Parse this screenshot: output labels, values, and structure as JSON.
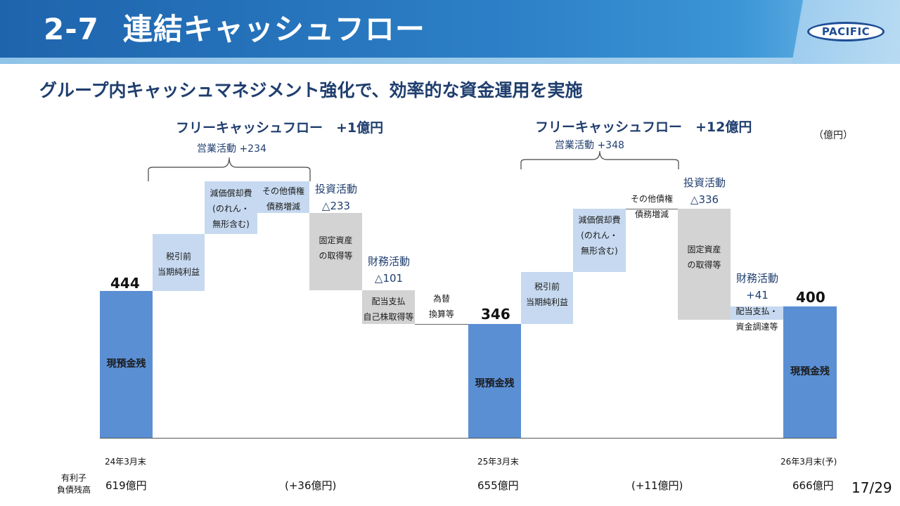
{
  "header": {
    "section_number": "2-7",
    "title": "連結キャッシュフロー",
    "logo_text": "PACIFIC"
  },
  "subtitle": "グループ内キャッシュマネジメント強化で、効率的な資金運用を実施",
  "unit": "（億円）",
  "fcf": [
    {
      "title": "フリーキャッシュフロー　+1億円",
      "operating": "営業活動  +234"
    },
    {
      "title": "フリーキャッシュフロー　+12億円",
      "operating": "営業活動  +348"
    }
  ],
  "chart_data": {
    "type": "waterfall",
    "unit": "（億円）",
    "period1": {
      "start": {
        "label": "24年3月末",
        "value": 444,
        "bar_text": "現預金残"
      },
      "steps": [
        {
          "text": [
            "税引前",
            "当期純利益"
          ]
        },
        {
          "text": [
            "減価償却費",
            "(のれん・",
            "無形含む)"
          ]
        },
        {
          "text": [
            "その他債権",
            "債務増減"
          ]
        },
        {
          "text": [
            "固定資産",
            "の取得等"
          ],
          "category": [
            "投資活動",
            "△233"
          ]
        },
        {
          "text": [
            "配当支払",
            "自己株取得等"
          ],
          "category": [
            "財務活動",
            "△101"
          ]
        },
        {
          "text": [
            "為替",
            "換算等"
          ]
        }
      ],
      "end": {
        "label": "25年3月末",
        "value": 346,
        "bar_text": "現預金残"
      }
    },
    "period2": {
      "steps": [
        {
          "text": [
            "税引前",
            "当期純利益"
          ]
        },
        {
          "text": [
            "減価償却費",
            "(のれん・",
            "無形含む)"
          ]
        },
        {
          "text": [
            "その他債権",
            "債務増減"
          ]
        },
        {
          "text": [
            "固定資産",
            "の取得等"
          ],
          "category": [
            "投資活動",
            "△336"
          ]
        },
        {
          "text": [
            "配当支払・",
            "資金調達等"
          ],
          "category": [
            "財務活動",
            "+41"
          ]
        }
      ],
      "end": {
        "label": "26年3月末(予)",
        "value": 400,
        "bar_text": "現預金残"
      }
    }
  },
  "debt": {
    "label": [
      "有利子",
      "負債残高"
    ],
    "values": [
      "619億円",
      "(+36億円)",
      "655億円",
      "(+11億円)",
      "666億円"
    ]
  },
  "page": "17/29",
  "colors": {
    "header": "#1e64ad",
    "blue_bar": "#5b8fd4",
    "light_bar": "#c6d9f0",
    "gray_bar": "#d3d3d3",
    "text_navy": "#1f3e6e"
  }
}
